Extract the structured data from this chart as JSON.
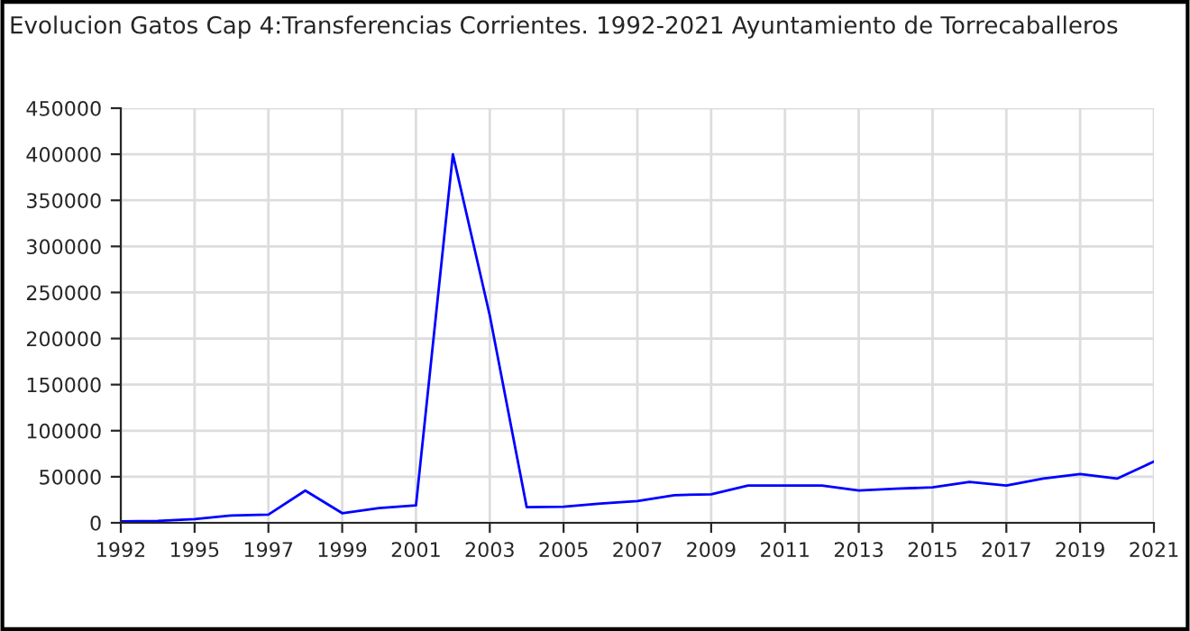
{
  "chart_data": {
    "type": "line",
    "title": "Evolucion Gatos Cap 4:Transferencias Corrientes. 1992-2021 Ayuntamiento de Torrecaballeros",
    "categories": [
      "1992",
      null,
      "1995",
      null,
      "1997",
      null,
      "1999",
      null,
      "2001",
      null,
      "2003",
      null,
      "2005",
      null,
      "2007",
      null,
      "2009",
      null,
      "2011",
      null,
      "2013",
      null,
      "2015",
      null,
      "2017",
      null,
      "2019",
      null,
      "2021"
    ],
    "series": [
      {
        "color": "#0000ff",
        "values": [
          1500,
          2000,
          4000,
          8000,
          9000,
          35000,
          10500,
          16000,
          19000,
          400000,
          225000,
          17000,
          17500,
          21000,
          23500,
          30000,
          31000,
          40500,
          40500,
          40500,
          35000,
          37000,
          38500,
          44500,
          40500,
          48000,
          53000,
          48000,
          66500
        ]
      }
    ],
    "ylim": [
      0,
      450000
    ],
    "yticks": [
      0,
      50000,
      100000,
      150000,
      200000,
      250000,
      300000,
      350000,
      400000,
      450000
    ],
    "grid": true
  }
}
